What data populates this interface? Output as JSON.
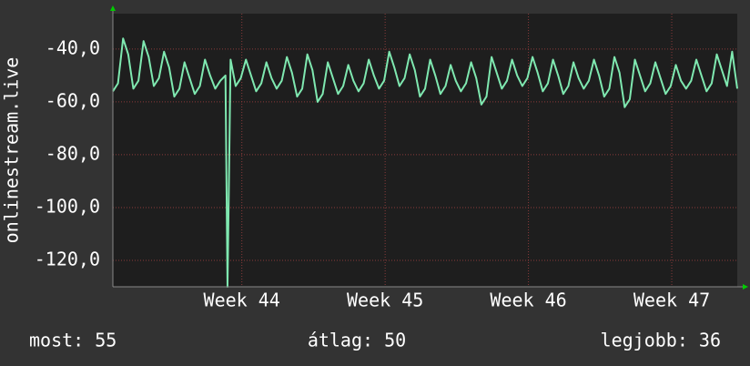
{
  "chart_data": {
    "type": "line",
    "y_label": "onlinestream.live",
    "x": [
      0,
      0.25,
      0.5,
      0.75,
      1,
      1.25,
      1.5,
      1.75,
      2,
      2.25,
      2.5,
      2.75,
      3,
      3.25,
      3.5,
      3.75,
      4,
      4.25,
      4.5,
      4.75,
      5,
      5.25,
      5.5,
      5.6,
      5.75,
      6,
      6.25,
      6.5,
      6.75,
      7,
      7.25,
      7.5,
      7.75,
      8,
      8.25,
      8.5,
      8.75,
      9,
      9.25,
      9.5,
      9.75,
      10,
      10.25,
      10.5,
      10.75,
      11,
      11.25,
      11.5,
      11.75,
      12,
      12.25,
      12.5,
      12.75,
      13,
      13.25,
      13.5,
      13.75,
      14,
      14.25,
      14.5,
      14.75,
      15,
      15.25,
      15.5,
      15.75,
      16,
      16.25,
      16.5,
      16.75,
      17,
      17.25,
      17.5,
      17.75,
      18,
      18.25,
      18.5,
      18.75,
      19,
      19.25,
      19.5,
      19.75,
      20,
      20.25,
      20.5,
      20.75,
      21,
      21.25,
      21.5,
      21.75,
      22,
      22.25,
      22.5,
      22.75,
      23,
      23.25,
      23.5,
      23.75,
      24,
      24.25,
      24.5,
      24.75,
      25,
      25.25,
      25.5,
      25.75,
      26,
      26.25,
      26.5,
      26.75,
      27,
      27.25,
      27.5,
      27.75,
      28,
      28.25,
      28.5,
      28.75,
      29,
      29.25,
      29.5,
      29.75,
      30,
      30.25,
      30.5
    ],
    "values": [
      -56,
      -53,
      -36,
      -42,
      -55,
      -52,
      -37,
      -43,
      -54,
      -51,
      -41,
      -47,
      -58,
      -55,
      -45,
      -51,
      -57,
      -54,
      -44,
      -50,
      -55,
      -52,
      -50,
      -130,
      -44,
      -54,
      -51,
      -44,
      -50,
      -56,
      -53,
      -45,
      -51,
      -55,
      -52,
      -43,
      -49,
      -58,
      -55,
      -42,
      -48,
      -60,
      -57,
      -45,
      -51,
      -57,
      -54,
      -46,
      -52,
      -56,
      -53,
      -44,
      -50,
      -55,
      -52,
      -41,
      -47,
      -54,
      -51,
      -42,
      -48,
      -58,
      -55,
      -44,
      -50,
      -57,
      -54,
      -46,
      -52,
      -56,
      -53,
      -45,
      -51,
      -61,
      -58,
      -43,
      -49,
      -55,
      -52,
      -44,
      -50,
      -54,
      -51,
      -43,
      -49,
      -56,
      -53,
      -44,
      -50,
      -57,
      -54,
      -45,
      -51,
      -55,
      -52,
      -44,
      -50,
      -58,
      -55,
      -43,
      -49,
      -62,
      -59,
      -44,
      -50,
      -56,
      -53,
      -45,
      -51,
      -57,
      -54,
      -46,
      -52,
      -55,
      -52,
      -44,
      -50,
      -56,
      -53,
      -42,
      -48,
      -54,
      -41,
      -55
    ],
    "color": "#7fe8b0",
    "xlim": [
      0,
      30.5
    ],
    "xticks": [
      {
        "value": 6.3,
        "label": "Week 44"
      },
      {
        "value": 13.3,
        "label": "Week 45"
      },
      {
        "value": 20.3,
        "label": "Week 46"
      },
      {
        "value": 27.3,
        "label": "Week 47"
      }
    ],
    "ylim": [
      -130,
      -26.6
    ],
    "yticks": [
      {
        "value": -40,
        "label": "-40,0"
      },
      {
        "value": -60,
        "label": "-60,0"
      },
      {
        "value": -80,
        "label": "-80,0"
      },
      {
        "value": -100,
        "label": "-100,0"
      },
      {
        "value": -120,
        "label": "-120,0"
      }
    ],
    "grid": true,
    "stats": [
      "most: 55",
      "átlag: 50",
      "legjobb: 36"
    ]
  }
}
